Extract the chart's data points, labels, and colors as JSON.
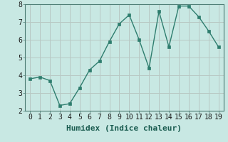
{
  "x": [
    0,
    1,
    2,
    3,
    4,
    5,
    6,
    7,
    8,
    9,
    10,
    11,
    12,
    13,
    14,
    15,
    16,
    17,
    18,
    19
  ],
  "y": [
    3.8,
    3.9,
    3.7,
    2.3,
    2.4,
    3.3,
    4.3,
    4.8,
    5.9,
    6.9,
    7.4,
    6.0,
    4.4,
    7.6,
    5.6,
    7.9,
    7.9,
    7.3,
    6.5,
    5.6
  ],
  "xlabel": "Humidex (Indice chaleur)",
  "ylim": [
    2,
    8
  ],
  "xlim_min": -0.5,
  "xlim_max": 19.5,
  "yticks": [
    2,
    3,
    4,
    5,
    6,
    7,
    8
  ],
  "xticks": [
    0,
    1,
    2,
    3,
    4,
    5,
    6,
    7,
    8,
    9,
    10,
    11,
    12,
    13,
    14,
    15,
    16,
    17,
    18,
    19
  ],
  "line_color": "#2e7d6e",
  "marker_color": "#2e7d6e",
  "bg_color": "#c8e8e3",
  "grid_color": "#b8c8c4",
  "axis_bg_color": "#c8e8e3",
  "xlabel_fontsize": 8,
  "tick_fontsize": 7,
  "line_width": 1.0,
  "marker_size": 2.5
}
